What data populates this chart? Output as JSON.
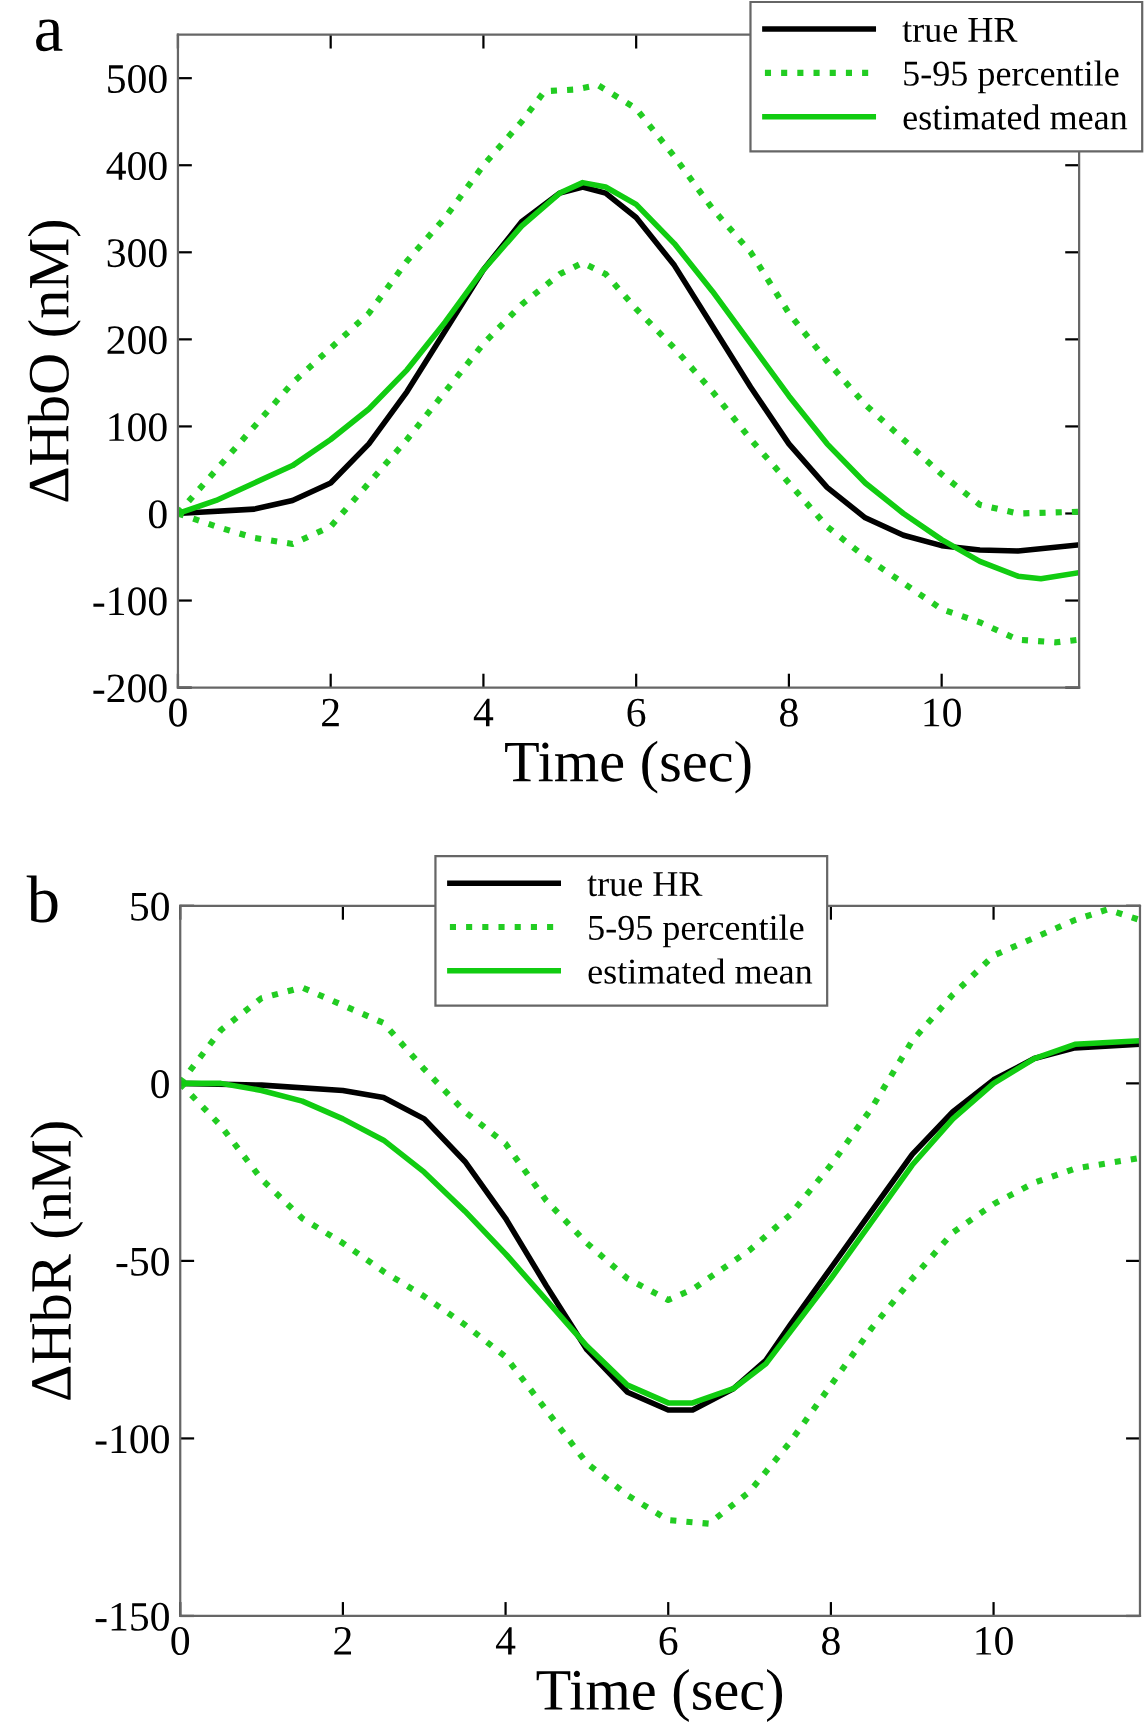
{
  "chart_data": [
    {
      "type": "line",
      "annotations": [
        "a"
      ],
      "xlabel": "Time (sec)",
      "ylabel": "ΔHbO (nM)",
      "xlim": [
        0,
        11.8
      ],
      "ylim": [
        -200,
        550
      ],
      "xticks": [
        0,
        2,
        4,
        6,
        8,
        10
      ],
      "yticks": [
        -200,
        -100,
        0,
        100,
        200,
        300,
        400,
        500
      ],
      "grid": false,
      "legend": "top right",
      "series": [
        {
          "name": "true HR",
          "color": "#000000",
          "line_style": "solid",
          "x": [
            0,
            1,
            1.5,
            2,
            2.5,
            3,
            3.5,
            4,
            4.5,
            5,
            5.3,
            5.6,
            6,
            6.5,
            7,
            7.5,
            8,
            8.5,
            9,
            9.5,
            10,
            10.5,
            11,
            11.8
          ],
          "values": [
            0,
            5,
            15,
            35,
            80,
            140,
            210,
            280,
            335,
            368,
            375,
            368,
            340,
            285,
            215,
            145,
            80,
            30,
            -5,
            -25,
            -37,
            -42,
            -43,
            -36
          ]
        },
        {
          "name": "5-95 percentile",
          "color": "#22cc22",
          "line_style": "dotted",
          "x": [
            0,
            0.5,
            1,
            1.5,
            2,
            2.5,
            3,
            3.5,
            4,
            4.5,
            4.8,
            5.2,
            5.5,
            6,
            6.5,
            7,
            7.5,
            8,
            8.5,
            9,
            9.5,
            10,
            10.5,
            11,
            11.8
          ],
          "values": [
            0,
            50,
            100,
            150,
            190,
            230,
            290,
            340,
            400,
            450,
            485,
            487,
            492,
            465,
            410,
            350,
            300,
            230,
            175,
            125,
            85,
            45,
            10,
            0,
            2
          ]
        },
        {
          "color": "#22cc22",
          "line_style": "dotted",
          "x": [
            0,
            0.5,
            1,
            1.5,
            2,
            2.5,
            3,
            3.5,
            4,
            4.5,
            5,
            5.3,
            5.6,
            6,
            6.5,
            7,
            7.5,
            8,
            8.5,
            9,
            9.5,
            10,
            10.5,
            11,
            11.5,
            11.8
          ],
          "values": [
            0,
            -15,
            -28,
            -35,
            -15,
            35,
            85,
            140,
            195,
            240,
            275,
            288,
            275,
            235,
            190,
            140,
            85,
            35,
            -15,
            -50,
            -80,
            -110,
            -125,
            -145,
            -148,
            -145
          ]
        },
        {
          "name": "estimated mean",
          "color": "#11cc11",
          "line_style": "solid",
          "x": [
            0,
            0.5,
            1,
            1.5,
            2,
            2.5,
            3,
            3.5,
            4,
            4.5,
            5,
            5.3,
            5.6,
            6,
            6.5,
            7,
            7.5,
            8,
            8.5,
            9,
            9.5,
            10,
            10.5,
            11,
            11.3,
            11.8
          ],
          "values": [
            0,
            15,
            35,
            55,
            85,
            120,
            165,
            220,
            280,
            330,
            368,
            380,
            375,
            355,
            310,
            255,
            195,
            135,
            80,
            35,
            0,
            -30,
            -55,
            -72,
            -75,
            -68
          ]
        }
      ]
    },
    {
      "type": "line",
      "annotations": [
        "b"
      ],
      "xlabel": "Time (sec)",
      "ylabel": "ΔHbR (nM)",
      "xlim": [
        0,
        11.8
      ],
      "ylim": [
        -150,
        50
      ],
      "xticks": [
        0,
        2,
        4,
        6,
        8,
        10
      ],
      "yticks": [
        -150,
        -100,
        -50,
        0,
        50
      ],
      "grid": false,
      "legend": "top",
      "series": [
        {
          "name": "true HR",
          "color": "#000000",
          "line_style": "solid",
          "x": [
            0,
            1,
            2,
            2.5,
            3,
            3.5,
            4,
            4.5,
            5,
            5.5,
            6,
            6.3,
            6.8,
            7.2,
            7.5,
            8,
            8.5,
            9,
            9.5,
            10,
            10.5,
            11,
            11.8
          ],
          "values": [
            0,
            -0.5,
            -2,
            -4,
            -10,
            -22,
            -38,
            -57,
            -75,
            -87,
            -92,
            -92,
            -86,
            -78,
            -68,
            -52,
            -36,
            -20,
            -8,
            1,
            7,
            10,
            11
          ]
        },
        {
          "name": "5-95 percentile",
          "color": "#22cc22",
          "line_style": "dotted",
          "x": [
            0,
            0.5,
            1,
            1.5,
            2,
            2.5,
            3,
            3.5,
            4,
            4.5,
            5,
            5.5,
            6,
            6.3,
            7,
            7.5,
            8,
            8.5,
            9,
            9.5,
            10,
            10.5,
            11,
            11.4,
            11.8
          ],
          "values": [
            0,
            15,
            24,
            27,
            22,
            17,
            4,
            -8,
            -17,
            -33,
            -45,
            -55,
            -61,
            -58,
            -47,
            -37,
            -23,
            -7,
            12,
            25,
            36,
            41,
            46,
            49,
            46
          ]
        },
        {
          "color": "#22cc22",
          "line_style": "dotted",
          "x": [
            0,
            0.5,
            1,
            1.5,
            2,
            2.5,
            3,
            3.5,
            4,
            4.5,
            5,
            5.5,
            6,
            6.5,
            7,
            7.5,
            8,
            8.5,
            9,
            9.5,
            10,
            10.5,
            11,
            11.8
          ],
          "values": [
            0,
            -12,
            -27,
            -38,
            -45,
            -53,
            -60,
            -68,
            -77,
            -92,
            -107,
            -116,
            -123,
            -124,
            -115,
            -101,
            -85,
            -69,
            -55,
            -42,
            -34,
            -28,
            -24,
            -21
          ]
        },
        {
          "name": "estimated mean",
          "color": "#11cc11",
          "line_style": "solid",
          "x": [
            0,
            0.5,
            1,
            1.5,
            2,
            2.5,
            3,
            3.5,
            4,
            4.5,
            5,
            5.5,
            6,
            6.3,
            6.8,
            7.2,
            7.5,
            8,
            8.5,
            9,
            9.5,
            10,
            10.5,
            11,
            11.8
          ],
          "values": [
            0,
            0,
            -2,
            -5,
            -10,
            -16,
            -25,
            -36,
            -48,
            -61,
            -74,
            -85,
            -90,
            -90,
            -86,
            -79,
            -70,
            -55,
            -39,
            -23,
            -10,
            0,
            7,
            11,
            12
          ]
        }
      ]
    }
  ]
}
